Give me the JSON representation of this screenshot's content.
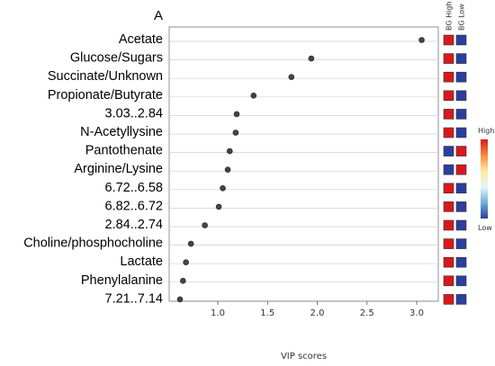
{
  "chart_data": {
    "type": "scatter",
    "panel_label": "A",
    "xlabel": "VIP scores",
    "ylabel": "",
    "xlim": [
      0.55,
      3.1
    ],
    "xticks": [
      1.0,
      1.5,
      2.0,
      2.5,
      3.0
    ],
    "tick_labels": [
      "1.0",
      "1.5",
      "2.0",
      "2.5",
      "3.0"
    ],
    "grid": "horizontal",
    "categories": [
      "Acetate",
      "Glucose/Sugars",
      "Succinate/Unknown",
      "Propionate/Butyrate",
      "3.03..2.84",
      "N-Acetyllysine",
      "Pantothenate",
      "Arginine/Lysine",
      "6.72..6.58",
      "6.82..6.72",
      "2.84..2.74",
      "Choline/phosphocholine",
      "Lactate",
      "Phenylalanine",
      "7.21..7.14"
    ],
    "values": [
      3.05,
      1.94,
      1.74,
      1.36,
      1.19,
      1.18,
      1.12,
      1.1,
      1.05,
      1.01,
      0.87,
      0.73,
      0.68,
      0.65,
      0.62
    ],
    "heatmap": {
      "columns": [
        "BG High",
        "BG Low"
      ],
      "cells": [
        [
          "high",
          "low"
        ],
        [
          "high",
          "low"
        ],
        [
          "high",
          "low"
        ],
        [
          "high",
          "low"
        ],
        [
          "high",
          "low"
        ],
        [
          "high",
          "low"
        ],
        [
          "low",
          "high"
        ],
        [
          "low",
          "high"
        ],
        [
          "high",
          "low"
        ],
        [
          "high",
          "low"
        ],
        [
          "high",
          "low"
        ],
        [
          "high",
          "low"
        ],
        [
          "high",
          "low"
        ],
        [
          "high",
          "low"
        ],
        [
          "high",
          "low"
        ]
      ],
      "colors": {
        "high": "#d7191c",
        "low": "#2c3e9e"
      }
    },
    "legend": {
      "title": "High",
      "bottom_label": "Low",
      "placement": "right",
      "gradient": [
        "#d7191c",
        "#f48a3c",
        "#fde9a0",
        "#e8f4f8",
        "#6fb1d6",
        "#2c3e9e"
      ]
    },
    "marker_color": "#444444"
  }
}
